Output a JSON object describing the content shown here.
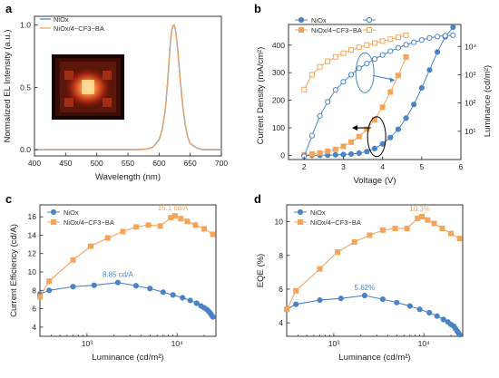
{
  "colors": {
    "nio": "#4a84c4",
    "cf3": "#f5a55a",
    "axis": "#222222"
  },
  "panels": [
    {
      "label": "a",
      "chart_data": {
        "type": "line",
        "xlabel": "Wavelength (nm)",
        "ylabel": "Normalized EL Intensity (a.u.)",
        "xlim": [
          400,
          700
        ],
        "ylim": [
          -0.05,
          1.07
        ],
        "xticks": [
          400,
          450,
          500,
          550,
          600,
          650,
          700
        ],
        "yticks": [
          0.0,
          0.5,
          1.0
        ],
        "legend": "top-left",
        "inset_image": "device-photo",
        "series": [
          {
            "name": "NiOx",
            "color": "#4a84c4",
            "x": [
              400,
              520,
              560,
              580,
              590,
              600,
              605,
              610,
              614,
              618,
              620,
              622,
              624,
              626,
              628,
              630,
              634,
              638,
              642,
              646,
              650,
              660,
              670,
              700
            ],
            "y": [
              0,
              0,
              0,
              0.005,
              0.02,
              0.08,
              0.16,
              0.32,
              0.56,
              0.85,
              0.95,
              0.99,
              1.0,
              0.97,
              0.9,
              0.8,
              0.56,
              0.35,
              0.2,
              0.1,
              0.05,
              0.015,
              0,
              0
            ]
          },
          {
            "name": "NiOx/4−CF3−BA",
            "color": "#f5a55a",
            "x": [
              400,
              520,
              560,
              580,
              590,
              600,
              605,
              610,
              614,
              618,
              620,
              622,
              624,
              626,
              628,
              630,
              634,
              638,
              642,
              646,
              650,
              660,
              670,
              700
            ],
            "y": [
              0,
              0,
              0,
              0.005,
              0.02,
              0.08,
              0.16,
              0.32,
              0.56,
              0.85,
              0.95,
              0.99,
              1.0,
              0.97,
              0.9,
              0.8,
              0.56,
              0.35,
              0.2,
              0.1,
              0.05,
              0.015,
              0,
              0
            ]
          }
        ]
      }
    },
    {
      "label": "b",
      "chart_data": {
        "type": "line",
        "xlabel": "Voltage (V)",
        "ylabel": "Current Density (mA/cm²)",
        "ylabel_right": "Luminance (cd/m²)",
        "xlim": [
          1.6,
          6
        ],
        "ylim": [
          -15,
          475
        ],
        "ylim_right_log": [
          1,
          60000
        ],
        "xticks": [
          2,
          3,
          4,
          5,
          6
        ],
        "yticks": [
          0,
          100,
          200,
          300,
          400
        ],
        "yticks_right": [
          10,
          100,
          1000,
          10000
        ],
        "yticks_right_labels": [
          "10¹",
          "10²",
          "10³",
          "10⁴"
        ],
        "legend": "top-left",
        "series": [
          {
            "name": "NiOx",
            "axis": "left",
            "marker": "filled-circle",
            "color": "#4a84c4",
            "x": [
              2.0,
              2.2,
              2.4,
              2.6,
              2.8,
              3.0,
              3.2,
              3.4,
              3.6,
              3.8,
              4.0,
              4.2,
              4.4,
              4.6,
              4.8,
              5.0,
              5.2,
              5.4,
              5.6,
              5.8
            ],
            "y": [
              0,
              0.3,
              0.6,
              1,
              2,
              3,
              5,
              8,
              14,
              25,
              42,
              65,
              95,
              135,
              185,
              245,
              310,
              375,
              430,
              465
            ]
          },
          {
            "name": "NiOx/4−CF3−BA",
            "axis": "left",
            "marker": "filled-square",
            "color": "#f5a55a",
            "x": [
              2.0,
              2.2,
              2.4,
              2.6,
              2.8,
              3.0,
              3.2,
              3.4,
              3.6,
              3.8,
              4.0,
              4.2,
              4.4,
              4.6
            ],
            "y": [
              2,
              5,
              9,
              15,
              22,
              33,
              48,
              68,
              95,
              130,
              175,
              230,
              290,
              357
            ]
          },
          {
            "name": "",
            "axis": "right",
            "marker": "open-circle",
            "color": "#4a84c4",
            "x": [
              2.0,
              2.2,
              2.4,
              2.6,
              2.8,
              3.0,
              3.2,
              3.4,
              3.6,
              3.8,
              4.0,
              4.2,
              4.4,
              4.6,
              4.8,
              5.0,
              5.2,
              5.4,
              5.6,
              5.8
            ],
            "y": [
              1.3,
              7,
              35,
              110,
              290,
              560,
              1000,
              1700,
              2500,
              3600,
              5000,
              6800,
              9000,
              11500,
              14000,
              17000,
              20000,
              22500,
              24000,
              25000
            ]
          },
          {
            "name": "",
            "axis": "right",
            "marker": "open-square",
            "color": "#f5a55a",
            "x": [
              2.0,
              2.2,
              2.4,
              2.6,
              2.8,
              3.0,
              3.2,
              3.4,
              3.6,
              3.8,
              4.0,
              4.2,
              4.4,
              4.6
            ],
            "y": [
              300,
              1000,
              1900,
              3000,
              4300,
              5800,
              7500,
              9300,
              11200,
              13200,
              15500,
              18000,
              21000,
              25000
            ]
          }
        ]
      }
    },
    {
      "label": "c",
      "chart_data": {
        "type": "line",
        "xlabel": "Luminance (cd/m²)",
        "ylabel": "Current Efficiency (cd/A)",
        "xscale": "log",
        "xlim": [
          300,
          27000
        ],
        "ylim": [
          3,
          17.3
        ],
        "xticks": [
          1000,
          10000
        ],
        "xtick_labels": [
          "10³",
          "10⁴"
        ],
        "yticks": [
          4,
          6,
          8,
          10,
          12,
          14,
          16
        ],
        "legend": "top-left",
        "annotations": [
          {
            "text": "16.1 cd/A",
            "x": 9000,
            "y": 16.1,
            "color": "#f5a55a"
          },
          {
            "text": "8.85 cd/A",
            "x": 2200,
            "y": 8.85,
            "color": "#4a84c4"
          }
        ],
        "series": [
          {
            "name": "NiOx",
            "marker": "filled-circle",
            "color": "#4a84c4",
            "x": [
              300,
              380,
              700,
              1200,
              2200,
              3500,
              5000,
              7000,
              9000,
              11500,
              14000,
              16500,
              18500,
              20000,
              21500,
              22500,
              23500,
              24200,
              25000
            ],
            "y": [
              7.6,
              8.0,
              8.4,
              8.55,
              8.85,
              8.5,
              8.2,
              7.8,
              7.5,
              7.2,
              6.9,
              6.6,
              6.3,
              6.1,
              5.9,
              5.7,
              5.5,
              5.3,
              5.1
            ]
          },
          {
            "name": "NiOx/4−CF3−BA",
            "marker": "filled-square",
            "color": "#f5a55a",
            "x": [
              300,
              380,
              700,
              1100,
              1700,
              2500,
              3500,
              4800,
              6500,
              8500,
              9500,
              11000,
              13000,
              16000,
              20000,
              25000
            ],
            "y": [
              7.3,
              9.0,
              11.3,
              12.8,
              13.7,
              14.4,
              14.9,
              15.1,
              15.0,
              15.9,
              16.1,
              15.8,
              15.5,
              15.1,
              14.7,
              14.1
            ]
          }
        ]
      }
    },
    {
      "label": "d",
      "chart_data": {
        "type": "line",
        "xlabel": "Luminance (cd/m²)",
        "ylabel": "EQE (%)",
        "xscale": "log",
        "xlim": [
          300,
          27000
        ],
        "ylim": [
          3.2,
          11
        ],
        "xticks": [
          1000,
          10000
        ],
        "xtick_labels": [
          "10³",
          "10⁴"
        ],
        "yticks": [
          4,
          6,
          8,
          10
        ],
        "legend": "top-left",
        "annotations": [
          {
            "text": "10.3%",
            "x": 9000,
            "y": 10.3,
            "color": "#f5a55a"
          },
          {
            "text": "5.62%",
            "x": 2200,
            "y": 5.62,
            "color": "#4a84c4"
          }
        ],
        "series": [
          {
            "name": "NiOx",
            "marker": "filled-circle",
            "color": "#4a84c4",
            "x": [
              300,
              380,
              700,
              1200,
              2200,
              3500,
              5000,
              7000,
              9000,
              11500,
              14000,
              16500,
              18500,
              20000,
              21500,
              22500,
              23500,
              24200,
              25000
            ],
            "y": [
              4.8,
              5.1,
              5.35,
              5.45,
              5.62,
              5.4,
              5.2,
              5.0,
              4.8,
              4.6,
              4.4,
              4.2,
              4.05,
              3.9,
              3.8,
              3.65,
              3.5,
              3.4,
              3.3
            ]
          },
          {
            "name": "NiOx/4−CF3−BA",
            "marker": "filled-square",
            "color": "#f5a55a",
            "x": [
              300,
              380,
              700,
              1100,
              1700,
              2500,
              3500,
              4800,
              6500,
              8500,
              9500,
              11000,
              13000,
              16000,
              20000,
              25000
            ],
            "y": [
              4.8,
              5.9,
              7.2,
              8.2,
              8.8,
              9.2,
              9.5,
              9.6,
              9.6,
              10.2,
              10.3,
              10.1,
              9.9,
              9.6,
              9.3,
              9.0
            ]
          }
        ]
      }
    }
  ]
}
